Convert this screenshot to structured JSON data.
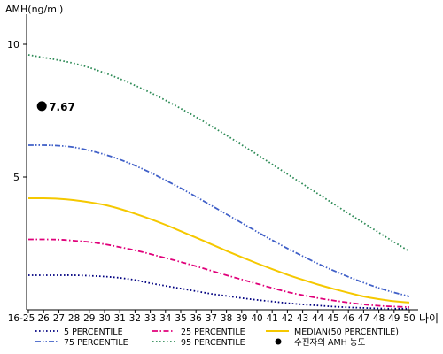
{
  "chart_data": {
    "type": "line",
    "ylabel": "AMH(ng/ml)",
    "xlabel": "나이",
    "ylim": [
      0,
      11
    ],
    "yticks": [
      5,
      10
    ],
    "x_categories": [
      "16-25",
      "26",
      "27",
      "28",
      "29",
      "30",
      "31",
      "32",
      "33",
      "34",
      "35",
      "36",
      "37",
      "38",
      "39",
      "40",
      "41",
      "42",
      "43",
      "44",
      "45",
      "46",
      "47",
      "48",
      "49",
      "50"
    ],
    "grid": false,
    "legend_position": "bottom",
    "series": [
      {
        "name": "5 PERCENTILE",
        "color": "#000080",
        "dash": "dotted",
        "values": [
          1.3,
          1.3,
          1.3,
          1.3,
          1.28,
          1.25,
          1.2,
          1.12,
          1.0,
          0.9,
          0.8,
          0.7,
          0.6,
          0.52,
          0.44,
          0.37,
          0.31,
          0.25,
          0.2,
          0.16,
          0.12,
          0.09,
          0.07,
          0.05,
          0.04,
          0.04
        ]
      },
      {
        "name": "25 PERCENTILE",
        "color": "#e0007a",
        "dash": "dashdot",
        "values": [
          2.65,
          2.65,
          2.64,
          2.6,
          2.55,
          2.47,
          2.36,
          2.24,
          2.1,
          1.95,
          1.8,
          1.64,
          1.47,
          1.3,
          1.14,
          0.98,
          0.82,
          0.67,
          0.55,
          0.44,
          0.35,
          0.27,
          0.2,
          0.15,
          0.12,
          0.1
        ]
      },
      {
        "name": "MEDIAN(50 PERCENTILE)",
        "color": "#f5c800",
        "dash": "solid",
        "values": [
          4.2,
          4.2,
          4.18,
          4.13,
          4.05,
          3.95,
          3.8,
          3.62,
          3.42,
          3.2,
          2.96,
          2.72,
          2.47,
          2.22,
          1.98,
          1.75,
          1.53,
          1.32,
          1.13,
          0.95,
          0.79,
          0.64,
          0.5,
          0.4,
          0.32,
          0.27
        ]
      },
      {
        "name": "75 PERCENTILE",
        "color": "#4060c8",
        "dash": "dashdotdot",
        "values": [
          6.2,
          6.2,
          6.18,
          6.12,
          6.0,
          5.85,
          5.66,
          5.43,
          5.17,
          4.88,
          4.58,
          4.26,
          3.93,
          3.6,
          3.27,
          2.94,
          2.62,
          2.31,
          2.02,
          1.74,
          1.48,
          1.24,
          1.02,
          0.82,
          0.65,
          0.5
        ]
      },
      {
        "name": "95 PERCENTILE",
        "color": "#2e8b57",
        "dash": "dotted",
        "values": [
          9.6,
          9.5,
          9.4,
          9.28,
          9.12,
          8.92,
          8.7,
          8.45,
          8.18,
          7.89,
          7.58,
          7.26,
          6.92,
          6.57,
          6.21,
          5.85,
          5.48,
          5.11,
          4.74,
          4.37,
          4.0,
          3.63,
          3.27,
          2.91,
          2.55,
          2.2
        ]
      }
    ],
    "marker": {
      "name": "수진자의 AMH 농도",
      "x_index": 1,
      "value": 7.67,
      "label": "7.67",
      "color": "#000000"
    }
  }
}
